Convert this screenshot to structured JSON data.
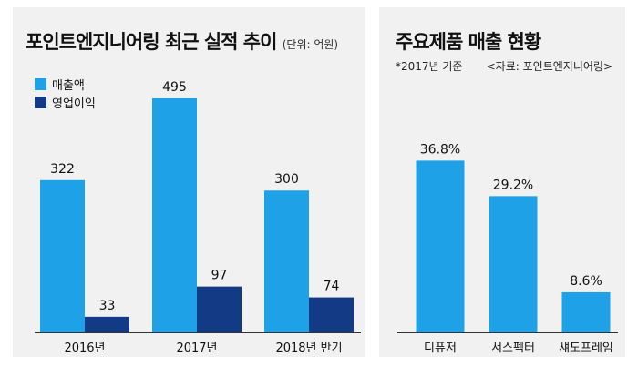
{
  "chart_data": [
    {
      "type": "bar",
      "title": "포인트엔지니어링 최근 실적 추이",
      "unit": "(단위: 억원)",
      "categories": [
        "2016년",
        "2017년",
        "2018년 반기"
      ],
      "series": [
        {
          "name": "매출액",
          "values": [
            322,
            495,
            300
          ],
          "color": "#1ea1e6"
        },
        {
          "name": "영업이익",
          "values": [
            33,
            97,
            74
          ],
          "color": "#123a85"
        }
      ],
      "ylim": [
        0,
        520
      ],
      "legend": "top-left",
      "grid": false
    },
    {
      "type": "bar",
      "title": "주요제품 매출 현황",
      "note": "*2017년 기준",
      "source": "<자료: 포인트엔지니어링>",
      "categories": [
        "디퓨저",
        "서스펙터",
        "섀도프레임"
      ],
      "values": [
        36.8,
        29.2,
        8.6
      ],
      "labels": [
        "36.8%",
        "29.2%",
        "8.6%"
      ],
      "color": "#1ea1e6",
      "ylim": [
        0,
        40
      ],
      "grid": false
    }
  ]
}
